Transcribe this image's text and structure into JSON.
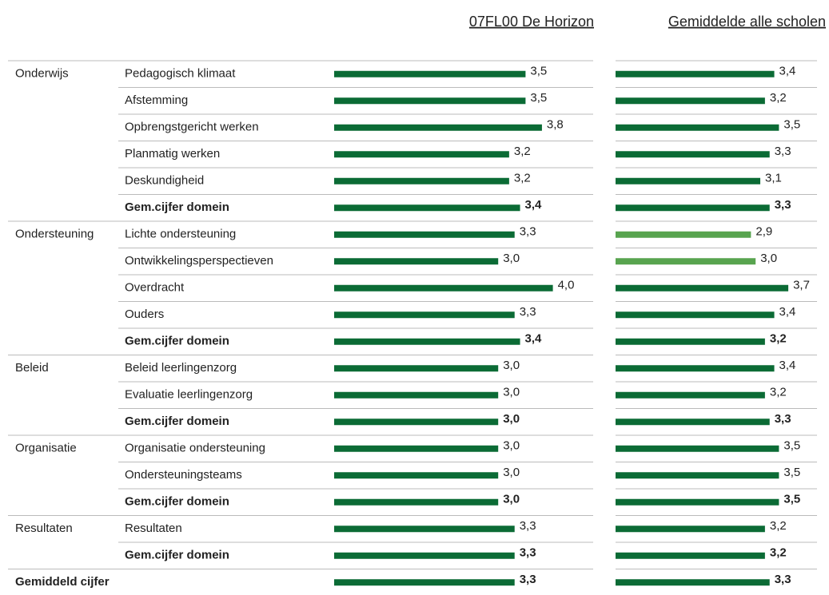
{
  "headers": [
    "07FL00 De Horizon",
    "Gemiddelde alle scholen"
  ],
  "xlim": [
    0,
    5
  ],
  "colors": {
    "default": "#0b6b35",
    "light": "#58a44f"
  },
  "rows": [
    {
      "domain": "Onderwijs",
      "item": "Pedagogisch klimaat",
      "values": [
        3.5,
        3.4
      ],
      "value_labels": [
        "3,5",
        "3,4"
      ]
    },
    {
      "item": "Afstemming",
      "values": [
        3.5,
        3.2
      ],
      "value_labels": [
        "3,5",
        "3,2"
      ]
    },
    {
      "item": "Opbrengstgericht werken",
      "values": [
        3.8,
        3.5
      ],
      "value_labels": [
        "3,8",
        "3,5"
      ]
    },
    {
      "item": "Planmatig werken",
      "values": [
        3.2,
        3.3
      ],
      "value_labels": [
        "3,2",
        "3,3"
      ]
    },
    {
      "item": "Deskundigheid",
      "values": [
        3.2,
        3.1
      ],
      "value_labels": [
        "3,2",
        "3,1"
      ]
    },
    {
      "item": "Gem.cijfer domein",
      "bold": true,
      "values": [
        3.4,
        3.3
      ],
      "value_labels": [
        "3,4",
        "3,3"
      ]
    },
    {
      "domain": "Ondersteuning",
      "item": "Lichte ondersteuning",
      "values": [
        3.3,
        2.9
      ],
      "value_labels": [
        "3,3",
        "2,9"
      ],
      "light": [
        1
      ]
    },
    {
      "item": "Ontwikkelingsperspectieven",
      "values": [
        3.0,
        3.0
      ],
      "value_labels": [
        "3,0",
        "3,0"
      ],
      "light": [
        1
      ]
    },
    {
      "item": "Overdracht",
      "values": [
        4.0,
        3.7
      ],
      "value_labels": [
        "4,0",
        "3,7"
      ]
    },
    {
      "item": "Ouders",
      "values": [
        3.3,
        3.4
      ],
      "value_labels": [
        "3,3",
        "3,4"
      ]
    },
    {
      "item": "Gem.cijfer domein",
      "bold": true,
      "values": [
        3.4,
        3.2
      ],
      "value_labels": [
        "3,4",
        "3,2"
      ]
    },
    {
      "domain": "Beleid",
      "item": "Beleid leerlingenzorg",
      "values": [
        3.0,
        3.4
      ],
      "value_labels": [
        "3,0",
        "3,4"
      ]
    },
    {
      "item": "Evaluatie leerlingenzorg",
      "values": [
        3.0,
        3.2
      ],
      "value_labels": [
        "3,0",
        "3,2"
      ]
    },
    {
      "item": "Gem.cijfer domein",
      "bold": true,
      "values": [
        3.0,
        3.3
      ],
      "value_labels": [
        "3,0",
        "3,3"
      ]
    },
    {
      "domain": "Organisatie",
      "item": "Organisatie ondersteuning",
      "values": [
        3.0,
        3.5
      ],
      "value_labels": [
        "3,0",
        "3,5"
      ]
    },
    {
      "item": "Ondersteuningsteams",
      "values": [
        3.0,
        3.5
      ],
      "value_labels": [
        "3,0",
        "3,5"
      ]
    },
    {
      "item": "Gem.cijfer domein",
      "bold": true,
      "values": [
        3.0,
        3.5
      ],
      "value_labels": [
        "3,0",
        "3,5"
      ]
    },
    {
      "domain": "Resultaten",
      "item": "Resultaten",
      "values": [
        3.3,
        3.2
      ],
      "value_labels": [
        "3,3",
        "3,2"
      ]
    },
    {
      "item": "Gem.cijfer domein",
      "bold": true,
      "values": [
        3.3,
        3.2
      ],
      "value_labels": [
        "3,3",
        "3,2"
      ]
    },
    {
      "domain": "Gemiddeld cijfer",
      "bold": true,
      "values": [
        3.3,
        3.3
      ],
      "value_labels": [
        "3,3",
        "3,3"
      ]
    }
  ]
}
